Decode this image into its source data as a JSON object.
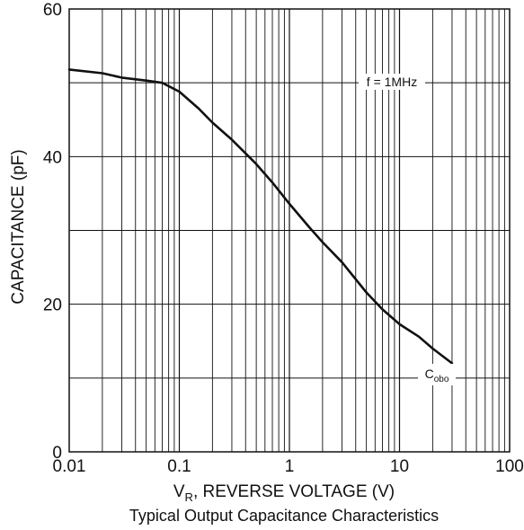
{
  "chart_data": {
    "type": "line",
    "title": "",
    "caption": "Typical Output Capacitance Characteristics",
    "xlabel": {
      "main": "V",
      "sub": "R",
      "rest": ", REVERSE VOLTAGE (V)"
    },
    "ylabel": "CAPACITANCE (pF)",
    "xscale": "log",
    "xlim": [
      0.01,
      100
    ],
    "ylim": [
      0,
      60
    ],
    "grid": true,
    "x_ticks": [
      {
        "value": 0.01,
        "label": "0.01"
      },
      {
        "value": 0.1,
        "label": "0.1"
      },
      {
        "value": 1,
        "label": "1"
      },
      {
        "value": 10,
        "label": "10"
      },
      {
        "value": 100,
        "label": "100"
      }
    ],
    "y_ticks": [
      {
        "value": 0,
        "label": "0"
      },
      {
        "value": 20,
        "label": "20"
      },
      {
        "value": 40,
        "label": "40"
      },
      {
        "value": 60,
        "label": "60"
      }
    ],
    "y_gridlines": [
      10,
      20,
      30,
      40,
      50
    ],
    "annotations": {
      "condition": "f = 1MHz",
      "curve_main": "C",
      "curve_sub": "obo"
    },
    "series": [
      {
        "label_main": "C",
        "label_sub": "obo",
        "color": "#111111",
        "points": [
          [
            0.01,
            51.8
          ],
          [
            0.02,
            51.3
          ],
          [
            0.03,
            50.7
          ],
          [
            0.05,
            50.3
          ],
          [
            0.07,
            50.0
          ],
          [
            0.1,
            48.8
          ],
          [
            0.15,
            46.5
          ],
          [
            0.2,
            44.6
          ],
          [
            0.3,
            42.3
          ],
          [
            0.5,
            39.0
          ],
          [
            0.7,
            36.5
          ],
          [
            1,
            33.6
          ],
          [
            1.5,
            30.5
          ],
          [
            2,
            28.4
          ],
          [
            3,
            25.7
          ],
          [
            5,
            21.6
          ],
          [
            7,
            19.3
          ],
          [
            10,
            17.3
          ],
          [
            15,
            15.6
          ],
          [
            20,
            14.0
          ],
          [
            30,
            12.0
          ]
        ]
      }
    ]
  }
}
